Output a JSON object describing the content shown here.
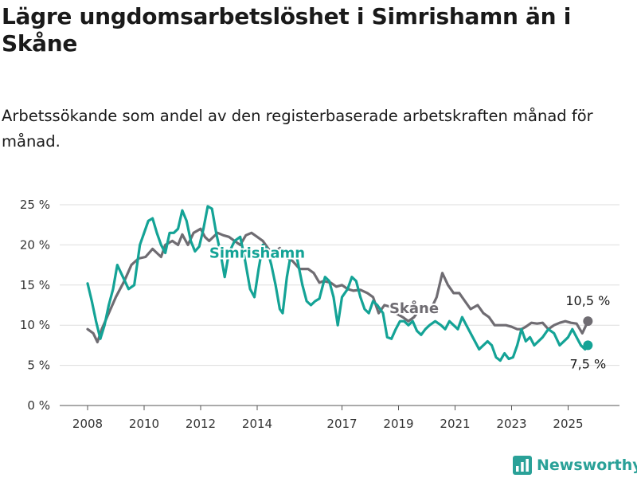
{
  "title": "Lägre ungdomsarbetslöshet i Simrishamn än i Skåne",
  "subtitle": "Arbetssökande som andel av den registerbaserade arbetskraften månad för månad.",
  "brand": {
    "name": "Newsworthy",
    "color": "#2aa198"
  },
  "chart_data": {
    "type": "line",
    "title": "Lägre ungdomsarbetslöshet i Simrishamn än i Skåne",
    "subtitle": "Arbetssökande som andel av den registerbaserade arbetskraften månad för månad.",
    "xlabel": "",
    "ylabel": "",
    "ylim": [
      0,
      25
    ],
    "xlim": [
      2007.4,
      2026.6
    ],
    "y_ticks": [
      0,
      5,
      10,
      15,
      20,
      25
    ],
    "y_tick_labels": [
      "0 %",
      "5 %",
      "10 %",
      "15 %",
      "20 %",
      "25 %"
    ],
    "x_ticks": [
      2008,
      2010,
      2012,
      2014,
      2017,
      2019,
      2021,
      2023,
      2025
    ],
    "x_tick_labels": [
      "2008",
      "2010",
      "2012",
      "2014",
      "2017",
      "2019",
      "2021",
      "2023",
      "2025"
    ],
    "grid": "horizontal",
    "series": [
      {
        "name": "Skåne",
        "color": "#6f6c72",
        "end_label": "10,5 %",
        "points": [
          [
            2008.0,
            9.5
          ],
          [
            2008.2,
            9.0
          ],
          [
            2008.35,
            7.9
          ],
          [
            2008.5,
            9.5
          ],
          [
            2008.75,
            11.5
          ],
          [
            2009.0,
            13.5
          ],
          [
            2009.3,
            15.5
          ],
          [
            2009.55,
            17.5
          ],
          [
            2009.8,
            18.3
          ],
          [
            2010.05,
            18.5
          ],
          [
            2010.3,
            19.5
          ],
          [
            2010.45,
            19.0
          ],
          [
            2010.6,
            18.5
          ],
          [
            2010.75,
            20.0
          ],
          [
            2011.0,
            20.5
          ],
          [
            2011.2,
            20.0
          ],
          [
            2011.35,
            21.3
          ],
          [
            2011.55,
            20.0
          ],
          [
            2011.75,
            21.5
          ],
          [
            2012.0,
            22.0
          ],
          [
            2012.15,
            21.0
          ],
          [
            2012.3,
            20.5
          ],
          [
            2012.45,
            21.0
          ],
          [
            2012.6,
            21.5
          ],
          [
            2012.8,
            21.2
          ],
          [
            2013.0,
            21.0
          ],
          [
            2013.2,
            20.5
          ],
          [
            2013.4,
            20.0
          ],
          [
            2013.6,
            21.2
          ],
          [
            2013.8,
            21.5
          ],
          [
            2014.0,
            21.0
          ],
          [
            2014.2,
            20.5
          ],
          [
            2014.4,
            19.5
          ],
          [
            2014.6,
            19.0
          ],
          [
            2014.8,
            19.6
          ],
          [
            2015.0,
            18.5
          ],
          [
            2015.25,
            18.0
          ],
          [
            2015.5,
            17.0
          ],
          [
            2015.8,
            17.0
          ],
          [
            2016.0,
            16.5
          ],
          [
            2016.2,
            15.3
          ],
          [
            2016.35,
            15.5
          ],
          [
            2016.6,
            15.3
          ],
          [
            2016.8,
            14.8
          ],
          [
            2017.0,
            15.0
          ],
          [
            2017.2,
            14.5
          ],
          [
            2017.4,
            14.3
          ],
          [
            2017.65,
            14.4
          ],
          [
            2017.9,
            14.0
          ],
          [
            2018.1,
            13.5
          ],
          [
            2018.3,
            11.5
          ],
          [
            2018.5,
            12.5
          ],
          [
            2018.7,
            12.3
          ],
          [
            2018.9,
            11.5
          ],
          [
            2019.15,
            11.0
          ],
          [
            2019.35,
            10.5
          ],
          [
            2019.55,
            11.0
          ],
          [
            2019.75,
            12.0
          ],
          [
            2019.95,
            12.0
          ],
          [
            2020.15,
            12.0
          ],
          [
            2020.35,
            13.5
          ],
          [
            2020.55,
            16.5
          ],
          [
            2020.75,
            15.0
          ],
          [
            2020.95,
            14.0
          ],
          [
            2021.15,
            14.0
          ],
          [
            2021.35,
            13.0
          ],
          [
            2021.55,
            12.0
          ],
          [
            2021.8,
            12.5
          ],
          [
            2022.0,
            11.5
          ],
          [
            2022.2,
            11.0
          ],
          [
            2022.4,
            10.0
          ],
          [
            2022.6,
            10.0
          ],
          [
            2022.8,
            10.0
          ],
          [
            2023.0,
            9.8
          ],
          [
            2023.2,
            9.5
          ],
          [
            2023.35,
            9.5
          ],
          [
            2023.5,
            9.8
          ],
          [
            2023.7,
            10.3
          ],
          [
            2023.9,
            10.2
          ],
          [
            2024.1,
            10.3
          ],
          [
            2024.3,
            9.5
          ],
          [
            2024.5,
            10.0
          ],
          [
            2024.7,
            10.3
          ],
          [
            2024.9,
            10.5
          ],
          [
            2025.1,
            10.3
          ],
          [
            2025.3,
            10.2
          ],
          [
            2025.5,
            9.0
          ],
          [
            2025.7,
            10.5
          ]
        ]
      },
      {
        "name": "Simrishamn",
        "color": "#14a396",
        "end_label": "7,5 %",
        "points": [
          [
            2008.0,
            15.2
          ],
          [
            2008.15,
            13.0
          ],
          [
            2008.3,
            10.5
          ],
          [
            2008.45,
            8.3
          ],
          [
            2008.6,
            10.0
          ],
          [
            2008.75,
            12.5
          ],
          [
            2008.9,
            14.5
          ],
          [
            2009.05,
            17.5
          ],
          [
            2009.25,
            16.0
          ],
          [
            2009.45,
            14.5
          ],
          [
            2009.65,
            15.0
          ],
          [
            2009.85,
            20.0
          ],
          [
            2010.0,
            21.5
          ],
          [
            2010.15,
            23.0
          ],
          [
            2010.3,
            23.3
          ],
          [
            2010.45,
            21.5
          ],
          [
            2010.6,
            20.0
          ],
          [
            2010.75,
            19.0
          ],
          [
            2010.9,
            21.5
          ],
          [
            2011.05,
            21.5
          ],
          [
            2011.2,
            22.0
          ],
          [
            2011.35,
            24.3
          ],
          [
            2011.5,
            23.0
          ],
          [
            2011.65,
            20.5
          ],
          [
            2011.8,
            19.2
          ],
          [
            2011.95,
            19.8
          ],
          [
            2012.1,
            22.0
          ],
          [
            2012.25,
            24.8
          ],
          [
            2012.4,
            24.5
          ],
          [
            2012.55,
            21.5
          ],
          [
            2012.7,
            19.0
          ],
          [
            2012.85,
            16.0
          ],
          [
            2013.0,
            19.0
          ],
          [
            2013.2,
            20.5
          ],
          [
            2013.4,
            21.0
          ],
          [
            2013.55,
            18.5
          ],
          [
            2013.75,
            14.5
          ],
          [
            2013.9,
            13.5
          ],
          [
            2014.05,
            17.0
          ],
          [
            2014.2,
            20.0
          ],
          [
            2014.35,
            19.5
          ],
          [
            2014.5,
            17.5
          ],
          [
            2014.65,
            15.0
          ],
          [
            2014.8,
            12.0
          ],
          [
            2014.9,
            11.5
          ],
          [
            2015.05,
            16.0
          ],
          [
            2015.2,
            19.0
          ],
          [
            2015.4,
            18.5
          ],
          [
            2015.6,
            15.0
          ],
          [
            2015.75,
            13.0
          ],
          [
            2015.9,
            12.5
          ],
          [
            2016.05,
            13.0
          ],
          [
            2016.2,
            13.3
          ],
          [
            2016.4,
            16.0
          ],
          [
            2016.55,
            15.5
          ],
          [
            2016.7,
            13.5
          ],
          [
            2016.85,
            10.0
          ],
          [
            2017.0,
            13.5
          ],
          [
            2017.2,
            14.5
          ],
          [
            2017.35,
            16.0
          ],
          [
            2017.5,
            15.5
          ],
          [
            2017.65,
            13.5
          ],
          [
            2017.8,
            12.0
          ],
          [
            2017.95,
            11.5
          ],
          [
            2018.1,
            13.0
          ],
          [
            2018.25,
            12.5
          ],
          [
            2018.45,
            11.5
          ],
          [
            2018.6,
            8.5
          ],
          [
            2018.75,
            8.3
          ],
          [
            2018.9,
            9.5
          ],
          [
            2019.05,
            10.5
          ],
          [
            2019.2,
            10.5
          ],
          [
            2019.35,
            10.0
          ],
          [
            2019.5,
            10.5
          ],
          [
            2019.65,
            9.3
          ],
          [
            2019.8,
            8.8
          ],
          [
            2019.95,
            9.5
          ],
          [
            2020.1,
            10.0
          ],
          [
            2020.3,
            10.5
          ],
          [
            2020.5,
            10.0
          ],
          [
            2020.65,
            9.5
          ],
          [
            2020.8,
            10.5
          ],
          [
            2020.95,
            10.0
          ],
          [
            2021.1,
            9.5
          ],
          [
            2021.25,
            11.0
          ],
          [
            2021.4,
            10.0
          ],
          [
            2021.55,
            9.0
          ],
          [
            2021.7,
            8.0
          ],
          [
            2021.85,
            7.0
          ],
          [
            2022.0,
            7.5
          ],
          [
            2022.15,
            8.0
          ],
          [
            2022.3,
            7.5
          ],
          [
            2022.45,
            6.0
          ],
          [
            2022.6,
            5.6
          ],
          [
            2022.75,
            6.5
          ],
          [
            2022.9,
            5.8
          ],
          [
            2023.05,
            6.0
          ],
          [
            2023.2,
            7.5
          ],
          [
            2023.35,
            9.5
          ],
          [
            2023.5,
            8.0
          ],
          [
            2023.65,
            8.5
          ],
          [
            2023.8,
            7.5
          ],
          [
            2023.95,
            8.0
          ],
          [
            2024.1,
            8.5
          ],
          [
            2024.3,
            9.5
          ],
          [
            2024.5,
            9.0
          ],
          [
            2024.7,
            7.5
          ],
          [
            2024.85,
            8.0
          ],
          [
            2025.0,
            8.5
          ],
          [
            2025.15,
            9.5
          ],
          [
            2025.3,
            8.5
          ],
          [
            2025.45,
            7.5
          ],
          [
            2025.6,
            7.0
          ],
          [
            2025.7,
            7.5
          ]
        ]
      }
    ]
  }
}
